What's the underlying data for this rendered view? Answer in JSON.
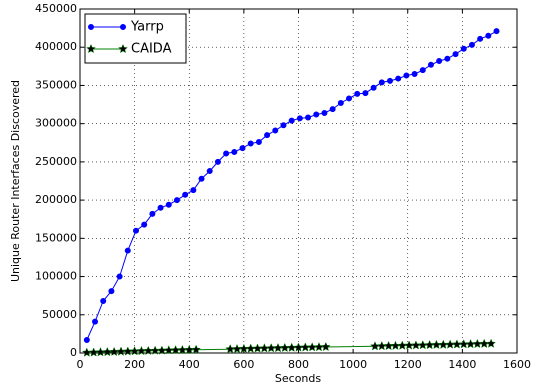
{
  "chart_data": {
    "type": "line",
    "xlabel": "Seconds",
    "ylabel": "Unique Router Interfaces Discovered",
    "xlim": [
      0,
      1600
    ],
    "xticks": [
      0,
      200,
      400,
      600,
      800,
      1000,
      1200,
      1400,
      1600
    ],
    "ylim": [
      0,
      450000
    ],
    "yticks": [
      0,
      50000,
      100000,
      150000,
      200000,
      250000,
      300000,
      350000,
      400000,
      450000
    ],
    "grid": true,
    "legend": "upper left",
    "series": [
      {
        "name": "Yarrp",
        "color": "#0000ff",
        "marker": "circle",
        "x": [
          25,
          55,
          85,
          115,
          145,
          175,
          205,
          235,
          265,
          295,
          325,
          355,
          385,
          415,
          445,
          475,
          505,
          535,
          565,
          595,
          625,
          655,
          685,
          715,
          745,
          775,
          805,
          835,
          865,
          895,
          925,
          955,
          985,
          1015,
          1045,
          1075,
          1105,
          1135,
          1165,
          1195,
          1225,
          1255,
          1285,
          1315,
          1345,
          1375,
          1405,
          1435,
          1465,
          1495,
          1525
        ],
        "values": [
          17000,
          41000,
          68000,
          81000,
          100000,
          134000,
          160000,
          168000,
          182000,
          190000,
          194000,
          200000,
          207000,
          213000,
          228000,
          238000,
          250000,
          261000,
          263000,
          268000,
          274000,
          276000,
          285000,
          291000,
          298000,
          304000,
          307000,
          308000,
          312000,
          314000,
          319000,
          327000,
          333000,
          339000,
          340000,
          347000,
          354000,
          356000,
          359000,
          363000,
          365000,
          370000,
          377000,
          382000,
          385000,
          391000,
          398000,
          403000,
          411000,
          415000,
          421000
        ]
      },
      {
        "name": "CAIDA",
        "color": "#008000",
        "marker": "star",
        "x": [
          25,
          50,
          75,
          100,
          125,
          150,
          175,
          200,
          225,
          250,
          275,
          300,
          325,
          350,
          375,
          400,
          425,
          550,
          575,
          600,
          625,
          650,
          675,
          700,
          725,
          750,
          775,
          800,
          825,
          850,
          875,
          900,
          1080,
          1105,
          1130,
          1155,
          1180,
          1205,
          1230,
          1255,
          1280,
          1305,
          1330,
          1355,
          1380,
          1405,
          1430,
          1455,
          1480,
          1505
        ],
        "values": [
          500,
          700,
          1000,
          1200,
          1500,
          1800,
          2000,
          2300,
          2600,
          2800,
          3000,
          3200,
          3500,
          3700,
          3900,
          4100,
          4300,
          5000,
          5200,
          5500,
          5700,
          5900,
          6100,
          6300,
          6500,
          6700,
          6900,
          7100,
          7300,
          7500,
          7700,
          7900,
          8800,
          9000,
          9200,
          9400,
          9600,
          9800,
          10000,
          10200,
          10400,
          10600,
          10800,
          11000,
          11200,
          11400,
          11600,
          11800,
          12000,
          12200
        ]
      }
    ]
  }
}
